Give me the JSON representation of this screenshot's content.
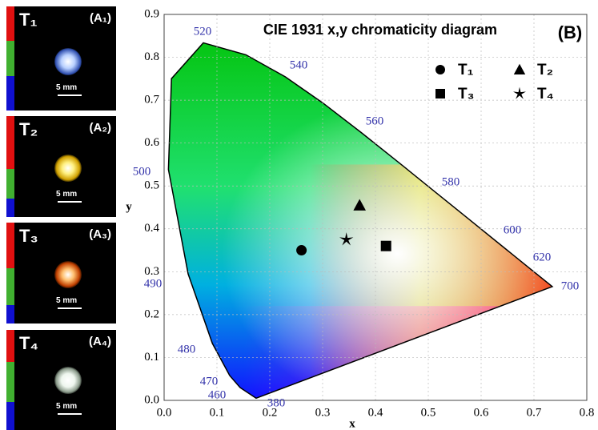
{
  "panels": [
    {
      "label": "T₁",
      "tag": "(A₁)",
      "scale": "5 mm"
    },
    {
      "label": "T₂",
      "tag": "(A₂)",
      "scale": "5 mm"
    },
    {
      "label": "T₃",
      "tag": "(A₃)",
      "scale": "5 mm"
    },
    {
      "label": "T₄",
      "tag": "(A₄)",
      "scale": "5 mm"
    }
  ],
  "chart_data": {
    "type": "scatter",
    "title": "CIE 1931 x,y chromaticity diagram",
    "panel_label": "(B)",
    "xlabel": "x",
    "ylabel": "y",
    "xlim": [
      0,
      0.8
    ],
    "ylim": [
      0,
      0.9
    ],
    "xticks": [
      {
        "value": 0,
        "label": "0.0"
      },
      0.1,
      0.2,
      0.3,
      0.4,
      0.5,
      0.6,
      0.7,
      0.8
    ],
    "yticks": [
      {
        "value": 0,
        "label": "0.0"
      },
      0.1,
      0.2,
      0.3,
      0.4,
      0.5,
      0.6,
      0.7,
      0.8,
      0.9
    ],
    "grid": true,
    "wavelength_labels": [
      "380",
      "460",
      "470",
      "480",
      "490",
      "500",
      "520",
      "540",
      "560",
      "580",
      "600",
      "620",
      "700"
    ],
    "series": [
      {
        "name": "T₁",
        "marker": "circle",
        "color": "#000000",
        "x": [
          0.26
        ],
        "values": [
          0.35
        ]
      },
      {
        "name": "T₂",
        "marker": "triangle",
        "color": "#000000",
        "x": [
          0.37
        ],
        "values": [
          0.455
        ]
      },
      {
        "name": "T₃",
        "marker": "square",
        "color": "#000000",
        "x": [
          0.42
        ],
        "values": [
          0.36
        ]
      },
      {
        "name": "T₄",
        "marker": "star",
        "color": "#000000",
        "x": [
          0.345
        ],
        "values": [
          0.375
        ]
      }
    ]
  }
}
